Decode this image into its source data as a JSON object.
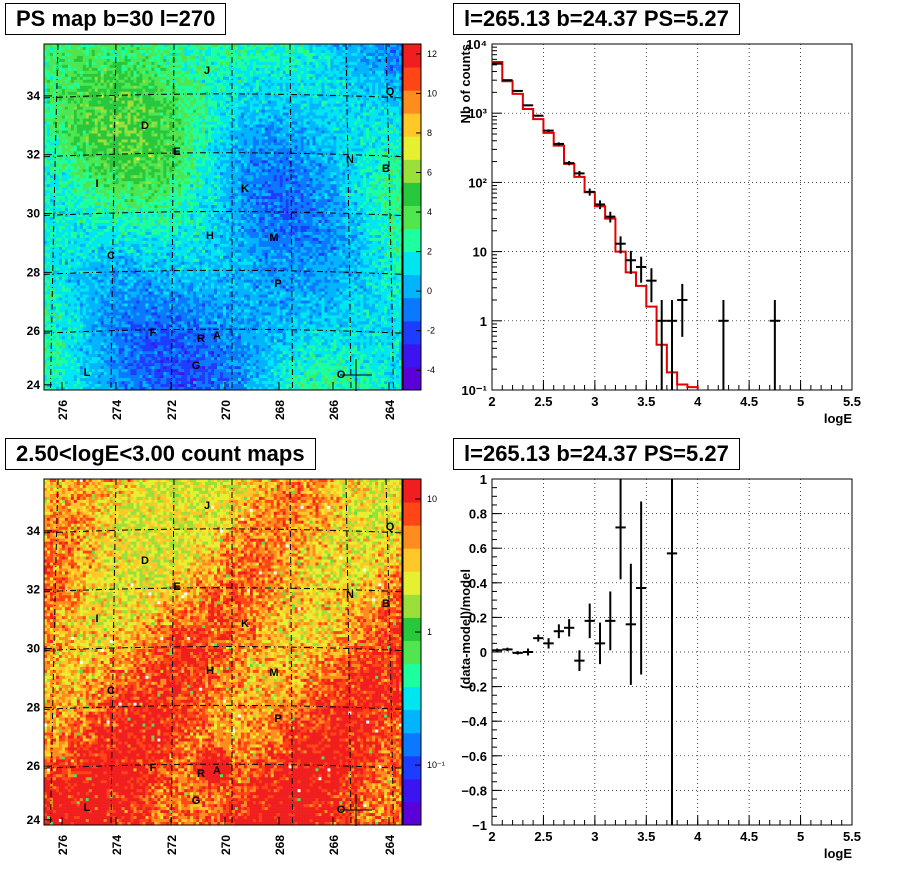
{
  "titles": {
    "map1": "PS map b=30 l=270",
    "spec": "l=265.13 b=24.37 PS=5.27",
    "map2": "2.50<logE<3.00 count maps",
    "resid": "l=265.13 b=24.37 PS=5.27"
  },
  "map_axes": {
    "x_ticks": [
      "276",
      "274",
      "272",
      "270",
      "268",
      "266",
      "264"
    ],
    "y_ticks": [
      "34",
      "32",
      "30",
      "28",
      "26",
      "24"
    ],
    "source_labels": [
      "J",
      "Q",
      "D",
      "E",
      "N",
      "B",
      "I",
      "K",
      "H",
      "M",
      "C",
      "P",
      "F",
      "R",
      "A",
      "G",
      "L",
      "O"
    ]
  },
  "palette": {
    "colors": [
      "#5a00d8",
      "#3c14f0",
      "#1e3cff",
      "#0a78ff",
      "#00b4ff",
      "#00e6f0",
      "#1eff9e",
      "#4fe64f",
      "#28c83c",
      "#9bdf3a",
      "#e6f030",
      "#ffc828",
      "#ff8c1e",
      "#ff4614",
      "#f01e1e"
    ]
  },
  "colorbar1": {
    "ticks": [
      "12",
      "10",
      "8",
      "6",
      "4",
      "2",
      "0",
      "-2",
      "-4"
    ],
    "range": [
      -5,
      12.5
    ]
  },
  "colorbar2": {
    "ticks": [
      "10",
      "1",
      "10⁻¹"
    ],
    "log_range": [
      -1.45,
      1.15
    ]
  },
  "chart_data": [
    {
      "type": "heatmap",
      "title": "PS map b=30 l=270",
      "xlabel": "",
      "ylabel": "",
      "x_range": [
        276.8,
        263.6
      ],
      "y_range": [
        23.9,
        35.8
      ],
      "z_range": [
        -5,
        12.5
      ]
    },
    {
      "type": "line",
      "title": "l=265.13 b=24.37 PS=5.27",
      "xlabel": "logE",
      "ylabel": "Nb of counts",
      "xlim": [
        2,
        5.5
      ],
      "ylim": [
        0.1,
        10000
      ],
      "yscale": "log",
      "grid": true,
      "y_tick_labels": [
        "10⁻¹",
        "1",
        "10",
        "10²",
        "10³",
        "10⁴"
      ],
      "x_tick_labels": [
        "2",
        "2.5",
        "3",
        "3.5",
        "4",
        "4.5",
        "5",
        "5.5"
      ],
      "series": [
        {
          "role": "data",
          "color": "#000000",
          "points": [
            [
              2.05,
              5200
            ],
            [
              2.15,
              3000
            ],
            [
              2.25,
              2100
            ],
            [
              2.35,
              1300
            ],
            [
              2.45,
              920
            ],
            [
              2.55,
              560
            ],
            [
              2.65,
              360
            ],
            [
              2.75,
              190
            ],
            [
              2.85,
              135
            ],
            [
              2.95,
              73
            ],
            [
              3.05,
              48
            ],
            [
              3.15,
              32
            ],
            [
              3.25,
              13
            ],
            [
              3.35,
              7.5
            ],
            [
              3.45,
              6
            ],
            [
              3.55,
              3.8
            ],
            [
              3.65,
              1
            ],
            [
              3.75,
              1
            ],
            [
              3.85,
              2
            ],
            [
              4.25,
              1
            ],
            [
              4.75,
              1
            ]
          ]
        },
        {
          "role": "model",
          "color": "#e00000",
          "edges": [
            2.0,
            2.1,
            2.2,
            2.3,
            2.4,
            2.5,
            2.6,
            2.7,
            2.8,
            2.9,
            3.0,
            3.1,
            3.2,
            3.3,
            3.4,
            3.5,
            3.6,
            3.7,
            3.8,
            3.9,
            4.0
          ],
          "values": [
            5500,
            2900,
            1900,
            1150,
            820,
            520,
            340,
            185,
            120,
            72,
            45,
            30,
            10,
            5,
            3.2,
            1.6,
            0.45,
            0.18,
            0.12,
            0.11,
            0.1
          ]
        }
      ]
    },
    {
      "type": "heatmap",
      "title": "2.50<logE<3.00 count maps",
      "xlabel": "",
      "ylabel": "",
      "x_range": [
        276.8,
        263.6
      ],
      "y_range": [
        23.9,
        35.8
      ],
      "zscale": "log"
    },
    {
      "type": "scatter",
      "title": "l=265.13 b=24.37 PS=5.27",
      "xlabel": "logE",
      "ylabel": "(data-model)/model",
      "xlim": [
        2,
        5.5
      ],
      "ylim": [
        -1,
        1
      ],
      "grid": true,
      "y_tick_labels": [
        "1",
        "0.8",
        "0.6",
        "0.4",
        "0.2",
        "0",
        "−0.2",
        "−0.4",
        "−0.6",
        "−0.8",
        "−1"
      ],
      "x_tick_labels": [
        "2",
        "2.5",
        "3",
        "3.5",
        "4",
        "4.5",
        "5",
        "5.5"
      ],
      "points": [
        [
          2.05,
          0.01,
          0.01
        ],
        [
          2.15,
          0.015,
          0.01
        ],
        [
          2.25,
          -0.005,
          0.01
        ],
        [
          2.35,
          0.0,
          0.02
        ],
        [
          2.45,
          0.08,
          0.02
        ],
        [
          2.55,
          0.05,
          0.03
        ],
        [
          2.65,
          0.12,
          0.04
        ],
        [
          2.75,
          0.14,
          0.05
        ],
        [
          2.85,
          -0.05,
          0.06
        ],
        [
          2.95,
          0.18,
          0.1
        ],
        [
          3.05,
          0.05,
          0.12
        ],
        [
          3.15,
          0.18,
          0.17
        ],
        [
          3.25,
          0.72,
          0.3
        ],
        [
          3.35,
          0.16,
          0.35
        ],
        [
          3.45,
          0.37,
          0.5
        ],
        [
          3.75,
          0.57,
          1.6
        ]
      ]
    }
  ]
}
